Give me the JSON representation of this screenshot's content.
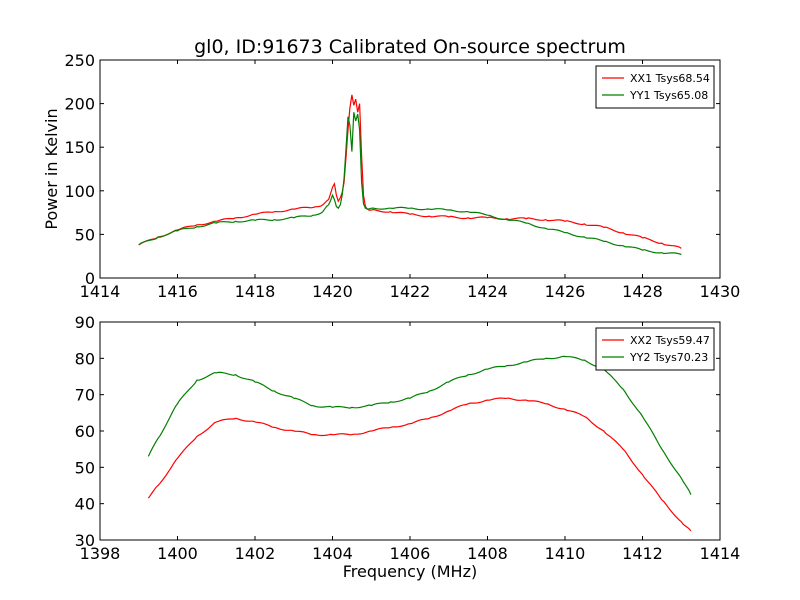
{
  "figure": {
    "title": "gl0, ID:91673 Calibrated On-source spectrum"
  },
  "chart_data": [
    {
      "type": "line",
      "ylabel": "Power in Kelvin",
      "xlabel": "",
      "xlim": [
        1414,
        1430
      ],
      "ylim": [
        0,
        250
      ],
      "xticks": [
        1414,
        1416,
        1418,
        1420,
        1422,
        1424,
        1426,
        1428,
        1430
      ],
      "yticks": [
        0,
        50,
        100,
        150,
        200,
        250
      ],
      "grid": false,
      "legend": "top-right",
      "series": [
        {
          "name": "XX1 Tsys68.54",
          "color": "#ff0000",
          "x": [
            1415.0,
            1415.5,
            1416.0,
            1416.5,
            1417.0,
            1417.5,
            1418.0,
            1418.5,
            1419.0,
            1419.5,
            1419.75,
            1419.9,
            1420.0,
            1420.05,
            1420.1,
            1420.15,
            1420.2,
            1420.25,
            1420.3,
            1420.35,
            1420.4,
            1420.45,
            1420.5,
            1420.55,
            1420.6,
            1420.65,
            1420.7,
            1420.75,
            1420.8,
            1420.85,
            1420.9,
            1421.0,
            1421.5,
            1422.0,
            1422.5,
            1423.0,
            1423.5,
            1424.0,
            1424.5,
            1425.0,
            1425.5,
            1426.0,
            1426.5,
            1427.0,
            1427.5,
            1428.0,
            1428.5,
            1429.0
          ],
          "y": [
            38,
            47,
            55,
            61,
            65,
            69,
            73,
            76,
            79,
            81,
            84,
            90,
            104,
            108,
            95,
            88,
            92,
            98,
            110,
            140,
            170,
            195,
            210,
            198,
            205,
            190,
            200,
            140,
            95,
            82,
            79,
            78,
            76,
            73,
            71,
            70,
            69,
            69,
            68,
            68,
            67,
            65,
            62,
            58,
            52,
            46,
            40,
            34
          ]
        },
        {
          "name": "YY1 Tsys65.08",
          "color": "#008000",
          "x": [
            1415.0,
            1415.5,
            1416.0,
            1416.5,
            1417.0,
            1417.5,
            1418.0,
            1418.5,
            1419.0,
            1419.5,
            1419.75,
            1419.9,
            1420.0,
            1420.05,
            1420.1,
            1420.15,
            1420.2,
            1420.25,
            1420.3,
            1420.35,
            1420.4,
            1420.45,
            1420.5,
            1420.55,
            1420.6,
            1420.65,
            1420.7,
            1420.75,
            1420.8,
            1420.85,
            1420.9,
            1421.0,
            1421.5,
            1422.0,
            1422.5,
            1423.0,
            1423.5,
            1424.0,
            1424.5,
            1425.0,
            1425.5,
            1426.0,
            1426.5,
            1427.0,
            1427.5,
            1428.0,
            1428.5,
            1429.0
          ],
          "y": [
            38,
            47,
            54,
            59,
            63,
            65,
            66,
            67,
            69,
            72,
            76,
            84,
            95,
            90,
            82,
            80,
            84,
            95,
            115,
            150,
            185,
            175,
            145,
            190,
            180,
            188,
            170,
            110,
            85,
            80,
            79,
            80,
            80,
            80,
            79,
            78,
            76,
            72,
            67,
            63,
            57,
            52,
            47,
            42,
            37,
            32,
            29,
            27
          ]
        }
      ]
    },
    {
      "type": "line",
      "xlabel": "Frequency (MHz)",
      "ylabel": "",
      "xlim": [
        1398,
        1414
      ],
      "ylim": [
        30,
        90
      ],
      "xticks": [
        1398,
        1400,
        1402,
        1404,
        1406,
        1408,
        1410,
        1412,
        1414
      ],
      "yticks": [
        30,
        40,
        50,
        60,
        70,
        80,
        90
      ],
      "grid": false,
      "legend": "top-right",
      "series": [
        {
          "name": "XX2 Tsys59.47",
          "color": "#ff0000",
          "x": [
            1399.25,
            1399.5,
            1400.0,
            1400.5,
            1401.0,
            1401.5,
            1402.0,
            1402.5,
            1403.0,
            1403.5,
            1404.0,
            1404.5,
            1405.0,
            1405.5,
            1406.0,
            1406.5,
            1407.0,
            1407.5,
            1408.0,
            1408.5,
            1409.0,
            1409.5,
            1410.0,
            1410.5,
            1411.0,
            1411.5,
            1412.0,
            1412.5,
            1413.0,
            1413.25
          ],
          "y": [
            41.5,
            45,
            52.5,
            58.5,
            62.5,
            63.5,
            62.5,
            61,
            60,
            59,
            59,
            59,
            60,
            61,
            62,
            63.5,
            65.5,
            67.5,
            68.5,
            69,
            68.5,
            67.5,
            66,
            64,
            60,
            55,
            48,
            41,
            35,
            32.5
          ]
        },
        {
          "name": "YY2 Tsys70.23",
          "color": "#008000",
          "x": [
            1399.25,
            1399.5,
            1400.0,
            1400.5,
            1401.0,
            1401.5,
            1402.0,
            1402.5,
            1403.0,
            1403.5,
            1404.0,
            1404.5,
            1405.0,
            1405.5,
            1406.0,
            1406.5,
            1407.0,
            1407.5,
            1408.0,
            1408.5,
            1409.0,
            1409.5,
            1410.0,
            1410.5,
            1411.0,
            1411.5,
            1412.0,
            1412.5,
            1413.0,
            1413.25
          ],
          "y": [
            53,
            58,
            67.5,
            74,
            76,
            75.5,
            73.5,
            71,
            69,
            67,
            66.5,
            66.5,
            67,
            68,
            69,
            71,
            73.5,
            75.5,
            77,
            78,
            79,
            80,
            80.5,
            79.5,
            77,
            71.5,
            64,
            55,
            47,
            42.5
          ]
        }
      ]
    }
  ]
}
